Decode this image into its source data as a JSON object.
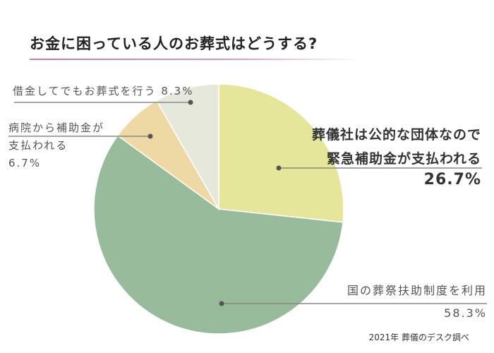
{
  "chart_data": {
    "type": "pie",
    "title": "お金に困っている人のお葬式はどうする?",
    "start_angle": "top",
    "direction": "clockwise",
    "slices": [
      {
        "label_lines": [
          "葬儀社は公的な団体なので",
          "緊急補助金が支払われる"
        ],
        "value": 26.7,
        "value_label": "26.7%",
        "color": "#e6e69b"
      },
      {
        "label_lines": [
          "国の葬祭扶助制度を利用"
        ],
        "value": 58.3,
        "value_label": "58.3%",
        "color": "#97bb9b"
      },
      {
        "label_lines": [
          "病院から補助金が",
          "支払われる"
        ],
        "value": 6.7,
        "value_label": "6.7%",
        "color": "#eed8a3"
      },
      {
        "label_lines": [
          "借金してでもお葬式を行う"
        ],
        "value": 8.3,
        "value_label": "8.3%",
        "color": "#e6e8dc"
      }
    ],
    "source": "2021年 葬儀のデスク調べ"
  }
}
